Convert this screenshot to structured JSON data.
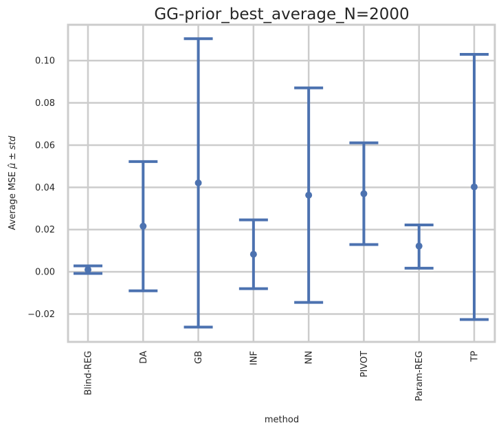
{
  "chart_data": {
    "type": "errorbar",
    "title": "GG-prior_best_average_N=2000",
    "xlabel": "method",
    "ylabel_prefix": "Average MSE ",
    "ylabel_math": "μ̂ ± std",
    "categories": [
      "Blind-REG",
      "DA",
      "GB",
      "INF",
      "NN",
      "PIVOT",
      "Param-REG",
      "TP"
    ],
    "series": [
      {
        "name": "Average MSE",
        "mean": [
          0.001,
          0.0216,
          0.0421,
          0.0083,
          0.0363,
          0.037,
          0.0122,
          0.0402
        ],
        "lower": [
          -0.0008,
          -0.009,
          -0.0262,
          -0.008,
          -0.0145,
          0.0129,
          0.0017,
          -0.0226
        ],
        "upper": [
          0.0028,
          0.0522,
          0.1104,
          0.0246,
          0.0871,
          0.0611,
          0.0222,
          0.103
        ]
      }
    ],
    "yticks": [
      -0.02,
      0.0,
      0.02,
      0.04,
      0.06,
      0.08,
      0.1
    ],
    "ytick_labels": [
      "−0.02",
      "0.00",
      "0.02",
      "0.04",
      "0.06",
      "0.08",
      "0.10"
    ],
    "ylim": [
      -0.0332,
      0.117
    ],
    "grid": true,
    "colors": {
      "series": "#4c72b0",
      "grid": "#cccccc",
      "text": "#262626",
      "background": "#ffffff"
    }
  }
}
